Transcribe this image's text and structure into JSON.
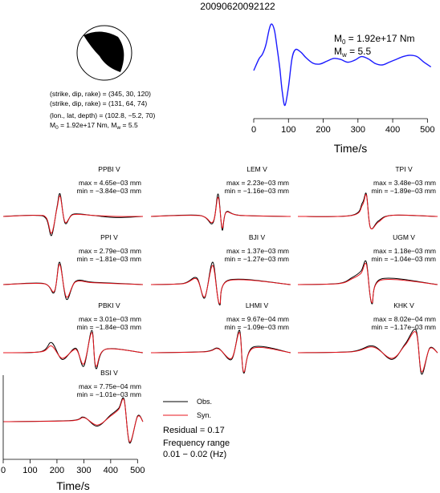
{
  "title": "20090620092122",
  "source_info": {
    "line1": "(strike, dip, rake) = (345, 30, 120)",
    "line2": "(strike, dip, rake) = (131, 64, 74)",
    "line3": "(lon., lat, depth) = (102.8, −5.2, 70)",
    "line4_prefix": "M",
    "line4_sub0": "0",
    "line4_mid": " = 1.92e+17 Nm, M",
    "line4_subw": "w",
    "line4_suffix": " = 5.5"
  },
  "stf_labels": {
    "m0_prefix": "M",
    "m0_sub": "0",
    "m0_value": " = 1.92e+17 Nm",
    "mw_prefix": "M",
    "mw_sub": "w",
    "mw_value": " = 5.5"
  },
  "legend": {
    "obs_label": "Obs.",
    "syn_label": "Syn.",
    "residual": "Residual = 0.17",
    "freq_title": "Frequency range",
    "freq_value": "0.01 − 0.02 (Hz)"
  },
  "colors": {
    "observed": "#000000",
    "synthetic": "#e8141c"
  },
  "chart_data": [
    {
      "type": "line",
      "title": "",
      "xlabel": "Time/s",
      "ylabel": "",
      "xlim": [
        0,
        520
      ],
      "xticks": [
        0,
        100,
        200,
        300,
        400,
        500
      ],
      "series": [
        {
          "x": [
            0,
            15,
            25,
            35,
            45,
            52,
            60,
            68,
            75,
            82,
            90,
            100,
            110,
            120,
            135,
            150,
            170,
            190,
            210,
            230,
            250,
            270,
            290,
            310,
            330,
            350,
            370,
            390,
            410,
            430,
            450,
            470,
            490,
            510
          ],
          "values": [
            0.0,
            0.25,
            0.35,
            0.55,
            0.9,
            1.0,
            0.85,
            0.45,
            0.05,
            -0.45,
            -0.75,
            -0.35,
            0.25,
            0.45,
            0.4,
            0.28,
            0.16,
            0.14,
            0.2,
            0.26,
            0.24,
            0.18,
            0.22,
            0.3,
            0.25,
            0.15,
            0.12,
            0.18,
            0.24,
            0.3,
            0.33,
            0.3,
            0.18,
            0.08
          ]
        }
      ]
    },
    {
      "type": "line",
      "title": "",
      "xlabel": "Time/s",
      "ylabel": "",
      "xlim": [
        0,
        520
      ],
      "xticks": [
        0,
        100,
        200,
        300,
        400,
        500
      ],
      "panels": [
        {
          "station": "PPBI V",
          "max": "max = 4.65e−03 mm",
          "min": "min = −3.84e−03 mm",
          "obs": [
            {
              "t": 0,
              "v": 0
            },
            {
              "t": 120,
              "v": 0.05
            },
            {
              "t": 160,
              "v": -0.1
            },
            {
              "t": 180,
              "v": -0.85
            },
            {
              "t": 200,
              "v": 0.4
            },
            {
              "t": 212,
              "v": 1.0
            },
            {
              "t": 230,
              "v": -0.3
            },
            {
              "t": 260,
              "v": 0.1
            },
            {
              "t": 330,
              "v": 0.05
            },
            {
              "t": 420,
              "v": -0.05
            },
            {
              "t": 520,
              "v": 0
            }
          ],
          "syn": [
            {
              "t": 0,
              "v": 0
            },
            {
              "t": 120,
              "v": 0.05
            },
            {
              "t": 160,
              "v": -0.05
            },
            {
              "t": 180,
              "v": -0.75
            },
            {
              "t": 200,
              "v": 0.35
            },
            {
              "t": 212,
              "v": 0.9
            },
            {
              "t": 230,
              "v": -0.25
            },
            {
              "t": 260,
              "v": 0.08
            },
            {
              "t": 330,
              "v": 0.05
            },
            {
              "t": 420,
              "v": 0
            },
            {
              "t": 520,
              "v": 0
            }
          ]
        },
        {
          "station": "LEM V",
          "max": "max = 2.23e−03 mm",
          "min": "min = −1.16e−03 mm",
          "obs": [
            {
              "t": 0,
              "v": 0
            },
            {
              "t": 180,
              "v": 0.05
            },
            {
              "t": 230,
              "v": -0.3
            },
            {
              "t": 250,
              "v": 1.0
            },
            {
              "t": 265,
              "v": -0.6
            },
            {
              "t": 280,
              "v": 0.2
            },
            {
              "t": 330,
              "v": 0.05
            },
            {
              "t": 520,
              "v": 0
            }
          ],
          "syn": [
            {
              "t": 0,
              "v": 0
            },
            {
              "t": 180,
              "v": 0.04
            },
            {
              "t": 230,
              "v": -0.25
            },
            {
              "t": 250,
              "v": 0.85
            },
            {
              "t": 265,
              "v": -0.5
            },
            {
              "t": 280,
              "v": 0.18
            },
            {
              "t": 330,
              "v": 0.05
            },
            {
              "t": 520,
              "v": 0
            }
          ]
        },
        {
          "station": "TPI V",
          "max": "max = 3.48e−03 mm",
          "min": "min = −1.89e−03 mm",
          "obs": [
            {
              "t": 0,
              "v": 0
            },
            {
              "t": 200,
              "v": 0.05
            },
            {
              "t": 240,
              "v": 0.6
            },
            {
              "t": 255,
              "v": 1.0
            },
            {
              "t": 270,
              "v": -0.5
            },
            {
              "t": 300,
              "v": -0.2
            },
            {
              "t": 350,
              "v": 0.05
            },
            {
              "t": 520,
              "v": 0
            }
          ],
          "syn": [
            {
              "t": 0,
              "v": 0
            },
            {
              "t": 200,
              "v": 0.04
            },
            {
              "t": 240,
              "v": 0.5
            },
            {
              "t": 255,
              "v": 0.95
            },
            {
              "t": 270,
              "v": -0.5
            },
            {
              "t": 300,
              "v": -0.25
            },
            {
              "t": 350,
              "v": 0.05
            },
            {
              "t": 520,
              "v": 0
            }
          ]
        },
        {
          "station": "PPI V",
          "max": "max = 2.79e−03 mm",
          "min": "min = −1.81e−03 mm",
          "obs": [
            {
              "t": 0,
              "v": 0
            },
            {
              "t": 150,
              "v": 0.05
            },
            {
              "t": 190,
              "v": -0.35
            },
            {
              "t": 210,
              "v": 1.0
            },
            {
              "t": 235,
              "v": -0.65
            },
            {
              "t": 270,
              "v": 0.15
            },
            {
              "t": 340,
              "v": 0.1
            },
            {
              "t": 520,
              "v": 0
            }
          ],
          "syn": [
            {
              "t": 0,
              "v": 0
            },
            {
              "t": 150,
              "v": 0.04
            },
            {
              "t": 190,
              "v": -0.3
            },
            {
              "t": 210,
              "v": 0.9
            },
            {
              "t": 235,
              "v": -0.55
            },
            {
              "t": 270,
              "v": 0.12
            },
            {
              "t": 340,
              "v": 0.08
            },
            {
              "t": 520,
              "v": 0
            }
          ]
        },
        {
          "station": "BJI V",
          "max": "max = 1.37e−03 mm",
          "min": "min = −1.27e−03 mm",
          "obs": [
            {
              "t": 0,
              "v": 0
            },
            {
              "t": 120,
              "v": 0.05
            },
            {
              "t": 170,
              "v": 0.3
            },
            {
              "t": 200,
              "v": -0.6
            },
            {
              "t": 230,
              "v": 1.0
            },
            {
              "t": 255,
              "v": -0.9
            },
            {
              "t": 290,
              "v": 0.2
            },
            {
              "t": 520,
              "v": 0
            }
          ],
          "syn": [
            {
              "t": 0,
              "v": 0
            },
            {
              "t": 120,
              "v": 0.04
            },
            {
              "t": 170,
              "v": 0.25
            },
            {
              "t": 200,
              "v": -0.55
            },
            {
              "t": 230,
              "v": 0.85
            },
            {
              "t": 255,
              "v": -0.85
            },
            {
              "t": 290,
              "v": 0.18
            },
            {
              "t": 520,
              "v": 0
            }
          ]
        },
        {
          "station": "UGM V",
          "max": "max = 1.18e−03 mm",
          "min": "min = −1.04e−03 mm",
          "obs": [
            {
              "t": 0,
              "v": 0
            },
            {
              "t": 150,
              "v": 0.05
            },
            {
              "t": 200,
              "v": 0.3
            },
            {
              "t": 235,
              "v": 0.6
            },
            {
              "t": 255,
              "v": 1.0
            },
            {
              "t": 275,
              "v": -0.85
            },
            {
              "t": 310,
              "v": 0.25
            },
            {
              "t": 520,
              "v": 0
            }
          ],
          "syn": [
            {
              "t": 0,
              "v": 0
            },
            {
              "t": 150,
              "v": 0.04
            },
            {
              "t": 200,
              "v": 0.25
            },
            {
              "t": 235,
              "v": 0.5
            },
            {
              "t": 255,
              "v": 0.9
            },
            {
              "t": 275,
              "v": -0.8
            },
            {
              "t": 310,
              "v": 0.2
            },
            {
              "t": 520,
              "v": 0
            }
          ]
        },
        {
          "station": "PBKI V",
          "max": "max = 3.01e−03 mm",
          "min": "min = −1.84e−03 mm",
          "obs": [
            {
              "t": 0,
              "v": 0
            },
            {
              "t": 140,
              "v": 0.05
            },
            {
              "t": 180,
              "v": 0.45
            },
            {
              "t": 220,
              "v": -0.3
            },
            {
              "t": 270,
              "v": 0.2
            },
            {
              "t": 300,
              "v": -0.6
            },
            {
              "t": 330,
              "v": 1.0
            },
            {
              "t": 345,
              "v": -0.7
            },
            {
              "t": 380,
              "v": 0.15
            },
            {
              "t": 520,
              "v": 0
            }
          ],
          "syn": [
            {
              "t": 0,
              "v": 0
            },
            {
              "t": 140,
              "v": 0.04
            },
            {
              "t": 180,
              "v": 0.3
            },
            {
              "t": 220,
              "v": -0.25
            },
            {
              "t": 270,
              "v": 0.15
            },
            {
              "t": 300,
              "v": -0.5
            },
            {
              "t": 330,
              "v": 0.9
            },
            {
              "t": 345,
              "v": -0.6
            },
            {
              "t": 380,
              "v": 0.15
            },
            {
              "t": 520,
              "v": 0
            }
          ]
        },
        {
          "station": "LHMI V",
          "max": "max = 9.67e−04 mm",
          "min": "min = −1.09e−03 mm",
          "obs": [
            {
              "t": 0,
              "v": 0
            },
            {
              "t": 200,
              "v": 0.05
            },
            {
              "t": 250,
              "v": 0.2
            },
            {
              "t": 300,
              "v": -0.3
            },
            {
              "t": 330,
              "v": 1.0
            },
            {
              "t": 345,
              "v": -0.9
            },
            {
              "t": 380,
              "v": 0.25
            },
            {
              "t": 520,
              "v": 0
            }
          ],
          "syn": [
            {
              "t": 0,
              "v": 0
            },
            {
              "t": 200,
              "v": 0.04
            },
            {
              "t": 250,
              "v": 0.18
            },
            {
              "t": 300,
              "v": -0.25
            },
            {
              "t": 330,
              "v": 0.9
            },
            {
              "t": 345,
              "v": -0.85
            },
            {
              "t": 380,
              "v": 0.2
            },
            {
              "t": 520,
              "v": 0
            }
          ]
        },
        {
          "station": "KHK V",
          "max": "max = 8.02e−04 mm",
          "min": "min = −1.17e−03 mm",
          "obs": [
            {
              "t": 0,
              "v": 0
            },
            {
              "t": 200,
              "v": 0.05
            },
            {
              "t": 280,
              "v": 0.3
            },
            {
              "t": 350,
              "v": -0.3
            },
            {
              "t": 400,
              "v": 0.4
            },
            {
              "t": 440,
              "v": 1.0
            },
            {
              "t": 460,
              "v": -0.95
            },
            {
              "t": 490,
              "v": 0.2
            },
            {
              "t": 520,
              "v": 0
            }
          ],
          "syn": [
            {
              "t": 0,
              "v": 0
            },
            {
              "t": 200,
              "v": 0.04
            },
            {
              "t": 280,
              "v": 0.25
            },
            {
              "t": 350,
              "v": -0.25
            },
            {
              "t": 400,
              "v": 0.35
            },
            {
              "t": 440,
              "v": 0.9
            },
            {
              "t": 460,
              "v": -0.85
            },
            {
              "t": 490,
              "v": 0.18
            },
            {
              "t": 520,
              "v": 0
            }
          ]
        },
        {
          "station": "BSI V",
          "max": "max = 7.75e−04 mm",
          "min": "min = −1.01e−03 mm",
          "obs": [
            {
              "t": 0,
              "v": 0
            },
            {
              "t": 250,
              "v": 0.05
            },
            {
              "t": 300,
              "v": 0.2
            },
            {
              "t": 350,
              "v": -0.2
            },
            {
              "t": 400,
              "v": 0.3
            },
            {
              "t": 430,
              "v": 0.6
            },
            {
              "t": 450,
              "v": 1.0
            },
            {
              "t": 470,
              "v": -0.95
            },
            {
              "t": 500,
              "v": 0.25
            },
            {
              "t": 520,
              "v": 0
            }
          ],
          "syn": [
            {
              "t": 0,
              "v": 0
            },
            {
              "t": 250,
              "v": 0.04
            },
            {
              "t": 300,
              "v": 0.18
            },
            {
              "t": 350,
              "v": -0.15
            },
            {
              "t": 400,
              "v": 0.25
            },
            {
              "t": 430,
              "v": 0.55
            },
            {
              "t": 450,
              "v": 0.95
            },
            {
              "t": 470,
              "v": -0.9
            },
            {
              "t": 500,
              "v": 0.22
            },
            {
              "t": 520,
              "v": 0
            }
          ]
        }
      ]
    }
  ]
}
